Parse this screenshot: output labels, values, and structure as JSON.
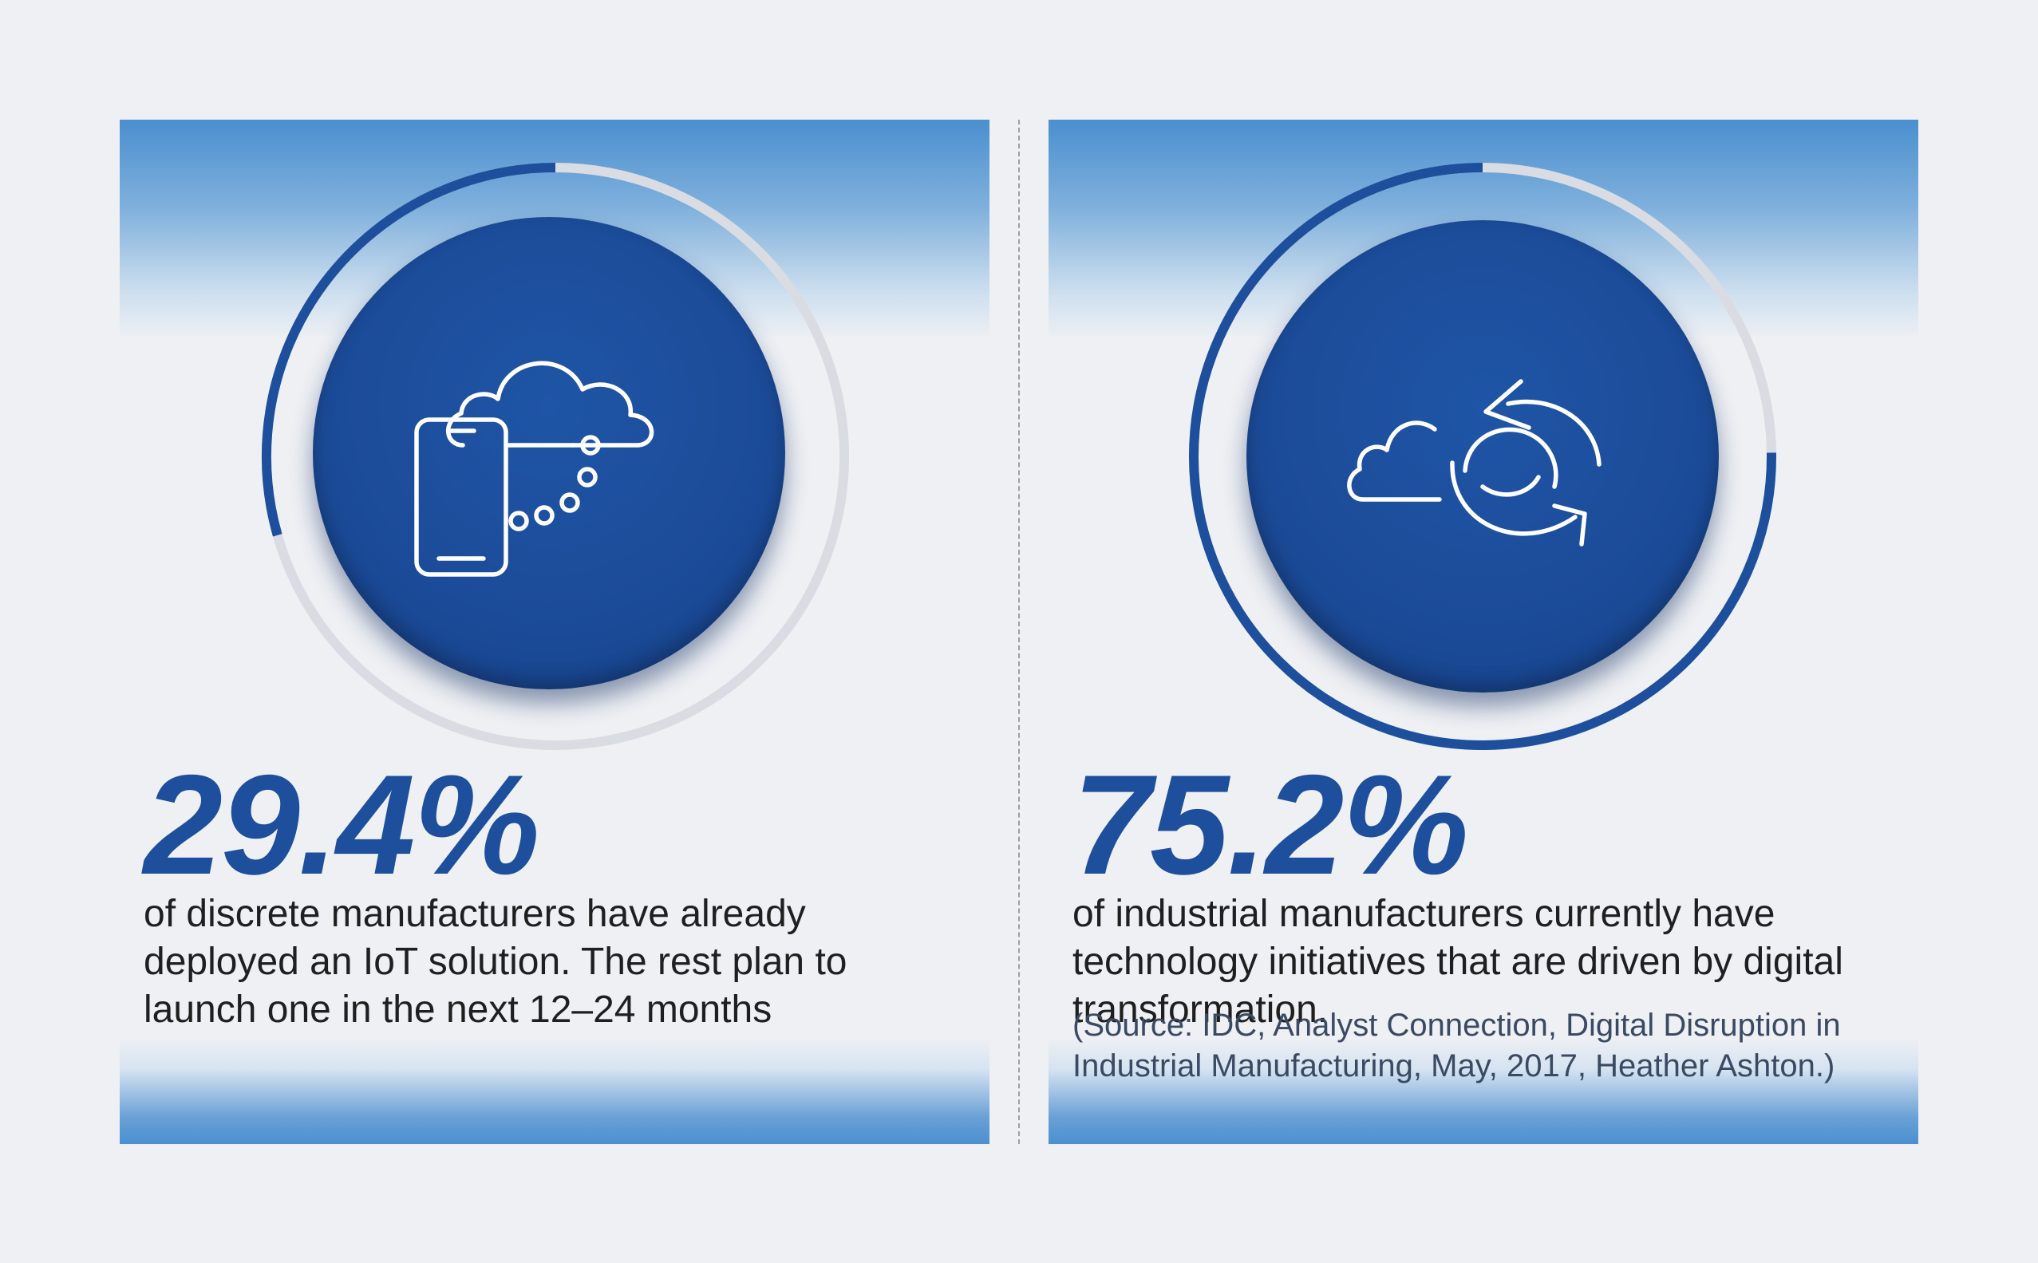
{
  "panels": [
    {
      "stat": "29.4%",
      "progress_percent": 29.4,
      "description": "of discrete manufacturers have already deployed an IoT solution. The rest plan to launch one in the next 12–24 months",
      "icon": "phone-cloud-icon"
    },
    {
      "stat": "75.2%",
      "progress_percent": 75.2,
      "description": "of industrial manufacturers currently have technology initiatives that are driven by digital transformation.",
      "source": "(Source: IDC, Analyst Connection, Digital Disruption in Industrial Manufacturing, May, 2017, Heather Ashton.)",
      "icon": "cloud-sync-icon"
    }
  ],
  "colors": {
    "accent": "#1d4f9c",
    "disc": "#1b4b98",
    "band": "#4a8fcf",
    "background": "#eef0f4"
  }
}
